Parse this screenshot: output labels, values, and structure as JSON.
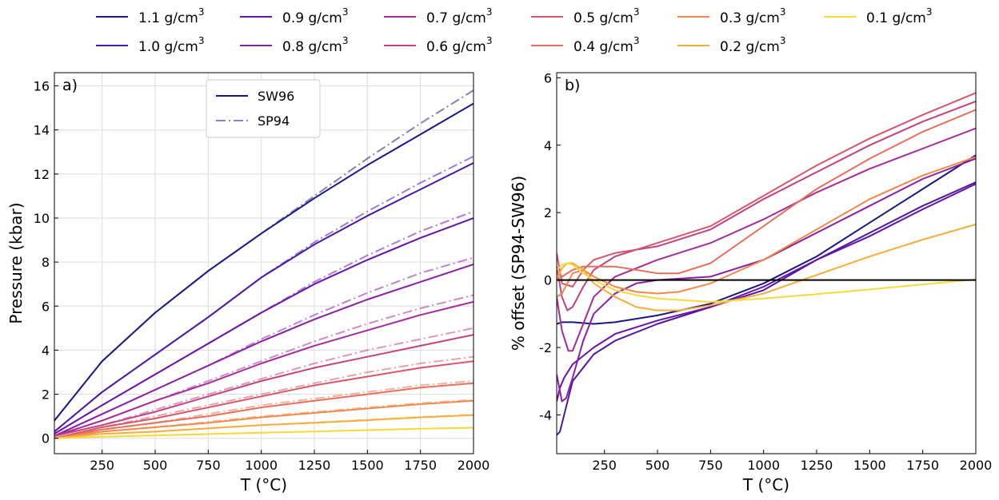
{
  "legend_top": {
    "entries": [
      {
        "label": "1.1 g/cm",
        "sup": "3",
        "color": "#1a1884"
      },
      {
        "label": "0.9 g/cm",
        "sup": "3",
        "color": "#6a12a8"
      },
      {
        "label": "0.7 g/cm",
        "sup": "3",
        "color": "#a52c98"
      },
      {
        "label": "0.5 g/cm",
        "sup": "3",
        "color": "#d6566b"
      },
      {
        "label": "0.3 g/cm",
        "sup": "3",
        "color": "#f0894a"
      },
      {
        "label": "0.1 g/cm",
        "sup": "3",
        "color": "#f8d93a"
      },
      {
        "label": "1.0 g/cm",
        "sup": "3",
        "color": "#4a18a2"
      },
      {
        "label": "0.8 g/cm",
        "sup": "3",
        "color": "#8a1fa3"
      },
      {
        "label": "0.6 g/cm",
        "sup": "3",
        "color": "#c2427f"
      },
      {
        "label": "0.4 g/cm",
        "sup": "3",
        "color": "#e76f5a"
      },
      {
        "label": "0.2 g/cm",
        "sup": "3",
        "color": "#f6ae3a"
      }
    ]
  },
  "chart_data": [
    {
      "type": "line",
      "panel_label": "a)",
      "xlabel": "T (°C)",
      "ylabel": "Pressure (kbar)",
      "xlim": [
        25,
        2000
      ],
      "ylim": [
        -0.7,
        16.6
      ],
      "xticks": [
        250,
        500,
        750,
        1000,
        1250,
        1500,
        1750,
        2000
      ],
      "yticks": [
        0,
        2,
        4,
        6,
        8,
        10,
        12,
        14,
        16
      ],
      "grid": true,
      "inner_legend": {
        "position": "top-center",
        "entries": [
          {
            "label": "SW96",
            "style": "solid",
            "color": "#1a1884"
          },
          {
            "label": "SP94",
            "style": "dashdot",
            "color": "#8a7fd0"
          }
        ]
      },
      "x": [
        25,
        250,
        500,
        750,
        1000,
        1250,
        1500,
        1750,
        2000
      ],
      "series": [
        {
          "name": "1.1 g/cm³ SW96",
          "color": "#1a1884",
          "style": "solid",
          "values": [
            0.8,
            3.5,
            5.7,
            7.6,
            9.3,
            10.9,
            12.4,
            13.8,
            15.2
          ]
        },
        {
          "name": "1.1 g/cm³ SP94",
          "color": "#1a1884",
          "style": "dashdot",
          "values": [
            0.8,
            3.5,
            5.7,
            7.6,
            9.3,
            11.0,
            12.7,
            14.3,
            15.8
          ]
        },
        {
          "name": "1.0 g/cm³ SW96",
          "color": "#4a18a2",
          "style": "solid",
          "values": [
            0.3,
            2.1,
            3.8,
            5.5,
            7.3,
            8.8,
            10.1,
            11.3,
            12.5
          ]
        },
        {
          "name": "1.0 g/cm³ SP94",
          "color": "#4a18a2",
          "style": "dashdot",
          "values": [
            0.3,
            2.1,
            3.8,
            5.5,
            7.3,
            8.9,
            10.3,
            11.6,
            12.8
          ]
        },
        {
          "name": "0.9 g/cm³ SW96",
          "color": "#6a12a8",
          "style": "solid",
          "values": [
            0.2,
            1.5,
            2.9,
            4.3,
            5.7,
            7.0,
            8.1,
            9.1,
            10.0
          ]
        },
        {
          "name": "0.9 g/cm³ SP94",
          "color": "#6a12a8",
          "style": "dashdot",
          "values": [
            0.2,
            1.5,
            2.9,
            4.3,
            5.7,
            7.1,
            8.3,
            9.4,
            10.3
          ]
        },
        {
          "name": "0.8 g/cm³ SW96",
          "color": "#8a1fa3",
          "style": "solid",
          "values": [
            0.1,
            1.1,
            2.2,
            3.3,
            4.4,
            5.4,
            6.3,
            7.1,
            7.9
          ]
        },
        {
          "name": "0.8 g/cm³ SP94",
          "color": "#8a1fa3",
          "style": "dashdot",
          "values": [
            0.1,
            1.1,
            2.2,
            3.3,
            4.5,
            5.6,
            6.6,
            7.5,
            8.2
          ]
        },
        {
          "name": "0.7 g/cm³ SW96",
          "color": "#a52c98",
          "style": "solid",
          "values": [
            0.1,
            0.8,
            1.7,
            2.5,
            3.4,
            4.2,
            4.9,
            5.6,
            6.2
          ]
        },
        {
          "name": "0.7 g/cm³ SP94",
          "color": "#a52c98",
          "style": "dashdot",
          "values": [
            0.1,
            0.8,
            1.7,
            2.6,
            3.5,
            4.4,
            5.2,
            5.9,
            6.5
          ]
        },
        {
          "name": "0.6 g/cm³ SW96",
          "color": "#c2427f",
          "style": "solid",
          "values": [
            0.1,
            0.6,
            1.2,
            1.9,
            2.6,
            3.2,
            3.7,
            4.2,
            4.7
          ]
        },
        {
          "name": "0.6 g/cm³ SP94",
          "color": "#c2427f",
          "style": "dashdot",
          "values": [
            0.1,
            0.6,
            1.3,
            2.0,
            2.7,
            3.4,
            4.0,
            4.5,
            5.0
          ]
        },
        {
          "name": "0.5 g/cm³ SW96",
          "color": "#d6566b",
          "style": "solid",
          "values": [
            0.0,
            0.5,
            0.9,
            1.4,
            1.9,
            2.4,
            2.8,
            3.2,
            3.5
          ]
        },
        {
          "name": "0.5 g/cm³ SP94",
          "color": "#d6566b",
          "style": "dashdot",
          "values": [
            0.0,
            0.5,
            1.0,
            1.5,
            2.0,
            2.5,
            3.0,
            3.4,
            3.7
          ]
        },
        {
          "name": "0.4 g/cm³ SW96",
          "color": "#e76f5a",
          "style": "solid",
          "values": [
            0.0,
            0.4,
            0.7,
            1.0,
            1.4,
            1.7,
            2.0,
            2.3,
            2.5
          ]
        },
        {
          "name": "0.4 g/cm³ SP94",
          "color": "#e76f5a",
          "style": "dashdot",
          "values": [
            0.0,
            0.4,
            0.7,
            1.1,
            1.5,
            1.8,
            2.1,
            2.4,
            2.6
          ]
        },
        {
          "name": "0.3 g/cm³ SW96",
          "color": "#f0894a",
          "style": "solid",
          "values": [
            0.0,
            0.3,
            0.5,
            0.7,
            0.95,
            1.15,
            1.35,
            1.55,
            1.7
          ]
        },
        {
          "name": "0.3 g/cm³ SP94",
          "color": "#f0894a",
          "style": "dashdot",
          "values": [
            0.0,
            0.3,
            0.5,
            0.75,
            1.0,
            1.2,
            1.4,
            1.6,
            1.75
          ]
        },
        {
          "name": "0.2 g/cm³ SW96",
          "color": "#f6ae3a",
          "style": "solid",
          "values": [
            0.0,
            0.2,
            0.3,
            0.45,
            0.6,
            0.7,
            0.82,
            0.95,
            1.05
          ]
        },
        {
          "name": "0.2 g/cm³ SP94",
          "color": "#f6ae3a",
          "style": "dashdot",
          "values": [
            0.0,
            0.2,
            0.3,
            0.45,
            0.6,
            0.72,
            0.84,
            0.97,
            1.08
          ]
        },
        {
          "name": "0.1 g/cm³ SW96",
          "color": "#f8d93a",
          "style": "solid",
          "values": [
            0.0,
            0.07,
            0.13,
            0.19,
            0.25,
            0.31,
            0.37,
            0.43,
            0.48
          ]
        },
        {
          "name": "0.1 g/cm³ SP94",
          "color": "#f8d93a",
          "style": "dashdot",
          "values": [
            0.0,
            0.07,
            0.13,
            0.19,
            0.25,
            0.31,
            0.37,
            0.43,
            0.48
          ]
        }
      ]
    },
    {
      "type": "line",
      "panel_label": "b)",
      "xlabel": "T (°C)",
      "ylabel": "% offset (SP94-SW96)",
      "xlim": [
        25,
        2000
      ],
      "ylim": [
        -5.15,
        6.15
      ],
      "xticks": [
        250,
        500,
        750,
        1000,
        1250,
        1500,
        1750,
        2000
      ],
      "yticks": [
        -4,
        -2,
        0,
        2,
        4,
        6
      ],
      "grid": false,
      "zero_line": 0,
      "series": [
        {
          "name": "1.1 g/cm³",
          "color": "#1a1884",
          "x": [
            25,
            50,
            100,
            200,
            300,
            500,
            750,
            1000,
            1250,
            1500,
            1750,
            2000
          ],
          "values": [
            -1.3,
            -1.25,
            -1.25,
            -1.3,
            -1.25,
            -1.05,
            -0.7,
            -0.1,
            0.7,
            1.7,
            2.7,
            3.7
          ]
        },
        {
          "name": "1.0 g/cm³",
          "color": "#4a18a2",
          "x": [
            25,
            40,
            60,
            100,
            200,
            300,
            500,
            750,
            1000,
            1250,
            1500,
            1750,
            2000
          ],
          "values": [
            -4.6,
            -4.5,
            -4.0,
            -3.0,
            -2.2,
            -1.8,
            -1.3,
            -0.8,
            -0.3,
            0.6,
            1.4,
            2.2,
            2.9
          ]
        },
        {
          "name": "0.9 g/cm³",
          "color": "#6a12a8",
          "x": [
            25,
            40,
            60,
            100,
            200,
            300,
            500,
            750,
            1000,
            1250,
            1500,
            1750,
            2000
          ],
          "values": [
            -3.6,
            -3.2,
            -2.9,
            -2.5,
            -2.0,
            -1.6,
            -1.2,
            -0.8,
            -0.2,
            0.6,
            1.3,
            2.1,
            2.85
          ]
        },
        {
          "name": "0.8 g/cm³",
          "color": "#8a1fa3",
          "x": [
            25,
            50,
            70,
            100,
            150,
            200,
            300,
            400,
            500,
            750,
            1000,
            1250,
            1500,
            1750,
            2000
          ],
          "values": [
            -2.8,
            -3.6,
            -3.5,
            -2.9,
            -1.8,
            -1.0,
            -0.4,
            -0.1,
            0.0,
            0.1,
            0.6,
            1.4,
            2.2,
            3.0,
            3.6
          ]
        },
        {
          "name": "0.7 g/cm³",
          "color": "#a52c98",
          "x": [
            25,
            50,
            80,
            100,
            150,
            200,
            300,
            500,
            750,
            1000,
            1250,
            1500,
            1750,
            2000
          ],
          "values": [
            -0.5,
            -1.5,
            -2.1,
            -2.1,
            -1.3,
            -0.5,
            0.1,
            0.6,
            1.1,
            1.8,
            2.6,
            3.3,
            3.9,
            4.5
          ]
        },
        {
          "name": "0.6 g/cm³",
          "color": "#c2427f",
          "x": [
            25,
            50,
            75,
            100,
            150,
            200,
            300,
            400,
            500,
            750,
            1000,
            1250,
            1500,
            1750,
            2000
          ],
          "values": [
            0.4,
            -0.5,
            -0.9,
            -0.8,
            -0.2,
            0.3,
            0.7,
            0.9,
            1.0,
            1.5,
            2.4,
            3.2,
            4.0,
            4.7,
            5.3
          ]
        },
        {
          "name": "0.5 g/cm³",
          "color": "#d6566b",
          "x": [
            25,
            50,
            100,
            150,
            200,
            300,
            400,
            500,
            750,
            1000,
            1250,
            1500,
            1750,
            2000
          ],
          "values": [
            0.8,
            -0.1,
            -0.2,
            0.3,
            0.6,
            0.8,
            0.9,
            1.1,
            1.6,
            2.5,
            3.4,
            4.2,
            4.9,
            5.55
          ]
        },
        {
          "name": "0.4 g/cm³",
          "color": "#e76f5a",
          "x": [
            25,
            50,
            100,
            150,
            200,
            300,
            400,
            500,
            600,
            750,
            1000,
            1250,
            1500,
            1750,
            2000
          ],
          "values": [
            0.2,
            0.1,
            0.3,
            0.4,
            0.4,
            0.4,
            0.3,
            0.2,
            0.2,
            0.5,
            1.6,
            2.7,
            3.6,
            4.4,
            5.05
          ]
        },
        {
          "name": "0.3 g/cm³",
          "color": "#f0894a",
          "x": [
            25,
            50,
            100,
            150,
            200,
            300,
            400,
            500,
            600,
            750,
            1000,
            1250,
            1500,
            1750,
            2000
          ],
          "values": [
            -0.5,
            -0.4,
            0.2,
            0.3,
            0.1,
            -0.2,
            -0.35,
            -0.4,
            -0.35,
            -0.1,
            0.6,
            1.5,
            2.4,
            3.1,
            3.65
          ]
        },
        {
          "name": "0.2 g/cm³",
          "color": "#f6ae3a",
          "x": [
            25,
            50,
            75,
            100,
            150,
            200,
            300,
            400,
            500,
            600,
            750,
            1000,
            1250,
            1500,
            1750,
            2000
          ],
          "values": [
            0.0,
            0.35,
            0.5,
            0.5,
            0.3,
            -0.1,
            -0.5,
            -0.8,
            -0.9,
            -0.9,
            -0.75,
            -0.4,
            0.15,
            0.7,
            1.2,
            1.65
          ]
        },
        {
          "name": "0.1 g/cm³",
          "color": "#f8d93a",
          "x": [
            25,
            50,
            75,
            100,
            150,
            200,
            300,
            400,
            500,
            750,
            1000,
            1250,
            1500,
            1750,
            2000
          ],
          "values": [
            0.3,
            0.45,
            0.5,
            0.45,
            0.2,
            0.0,
            -0.3,
            -0.45,
            -0.55,
            -0.65,
            -0.55,
            -0.42,
            -0.28,
            -0.13,
            0.02
          ]
        }
      ]
    }
  ]
}
